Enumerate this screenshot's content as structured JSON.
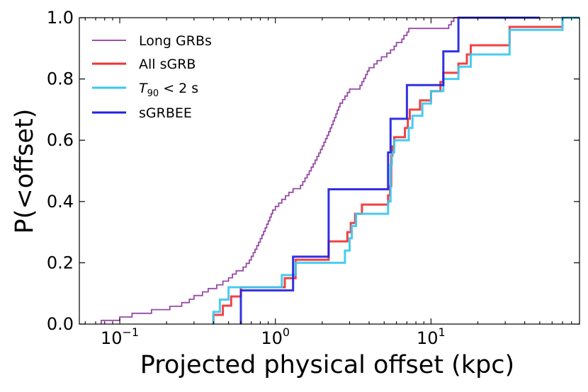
{
  "chart_data": {
    "type": "line",
    "subtype": "empirical-cdf-step",
    "title": "",
    "xlabel": "Projected physical offset (kpc)",
    "ylabel": "P(<offset)",
    "xscale": "log",
    "xlim": [
      0.055,
      90
    ],
    "ylim": [
      0,
      1
    ],
    "x_tick_labels": [
      {
        "value": 0.1,
        "base": "10",
        "exp": "−1"
      },
      {
        "value": 1,
        "base": "10",
        "exp": "0"
      },
      {
        "value": 10,
        "base": "10",
        "exp": "1"
      }
    ],
    "y_ticks": [
      0.0,
      0.2,
      0.4,
      0.6,
      0.8,
      1.0
    ],
    "y_tick_labels": [
      "0.0",
      "0.2",
      "0.4",
      "0.6",
      "0.8",
      "1.0"
    ],
    "legend_position": "top-left",
    "series": [
      {
        "name": "Long GRBs",
        "color": "#8e3a9e",
        "points": [
          [
            0.076,
            0.0
          ],
          [
            0.076,
            0.012
          ],
          [
            0.1,
            0.012
          ],
          [
            0.1,
            0.023
          ],
          [
            0.12,
            0.023
          ],
          [
            0.12,
            0.035
          ],
          [
            0.16,
            0.035
          ],
          [
            0.16,
            0.047
          ],
          [
            0.21,
            0.047
          ],
          [
            0.21,
            0.058
          ],
          [
            0.25,
            0.058
          ],
          [
            0.25,
            0.07
          ],
          [
            0.28,
            0.07
          ],
          [
            0.28,
            0.081
          ],
          [
            0.3,
            0.081
          ],
          [
            0.3,
            0.093
          ],
          [
            0.34,
            0.093
          ],
          [
            0.34,
            0.105
          ],
          [
            0.37,
            0.105
          ],
          [
            0.37,
            0.116
          ],
          [
            0.42,
            0.116
          ],
          [
            0.42,
            0.128
          ],
          [
            0.46,
            0.128
          ],
          [
            0.46,
            0.14
          ],
          [
            0.5,
            0.14
          ],
          [
            0.5,
            0.151
          ],
          [
            0.53,
            0.151
          ],
          [
            0.53,
            0.163
          ],
          [
            0.56,
            0.163
          ],
          [
            0.56,
            0.174
          ],
          [
            0.62,
            0.174
          ],
          [
            0.62,
            0.186
          ],
          [
            0.65,
            0.186
          ],
          [
            0.65,
            0.198
          ],
          [
            0.68,
            0.198
          ],
          [
            0.68,
            0.209
          ],
          [
            0.7,
            0.209
          ],
          [
            0.7,
            0.221
          ],
          [
            0.72,
            0.221
          ],
          [
            0.72,
            0.233
          ],
          [
            0.74,
            0.233
          ],
          [
            0.74,
            0.244
          ],
          [
            0.76,
            0.244
          ],
          [
            0.76,
            0.256
          ],
          [
            0.78,
            0.256
          ],
          [
            0.78,
            0.267
          ],
          [
            0.8,
            0.267
          ],
          [
            0.8,
            0.279
          ],
          [
            0.82,
            0.279
          ],
          [
            0.82,
            0.291
          ],
          [
            0.84,
            0.291
          ],
          [
            0.84,
            0.302
          ],
          [
            0.86,
            0.302
          ],
          [
            0.86,
            0.314
          ],
          [
            0.88,
            0.314
          ],
          [
            0.88,
            0.326
          ],
          [
            0.9,
            0.326
          ],
          [
            0.9,
            0.337
          ],
          [
            0.92,
            0.337
          ],
          [
            0.92,
            0.349
          ],
          [
            0.94,
            0.349
          ],
          [
            0.94,
            0.36
          ],
          [
            0.96,
            0.36
          ],
          [
            0.96,
            0.372
          ],
          [
            1.0,
            0.372
          ],
          [
            1.0,
            0.384
          ],
          [
            1.05,
            0.384
          ],
          [
            1.05,
            0.395
          ],
          [
            1.1,
            0.395
          ],
          [
            1.1,
            0.407
          ],
          [
            1.16,
            0.407
          ],
          [
            1.16,
            0.419
          ],
          [
            1.22,
            0.419
          ],
          [
            1.22,
            0.43
          ],
          [
            1.3,
            0.43
          ],
          [
            1.3,
            0.442
          ],
          [
            1.45,
            0.442
          ],
          [
            1.45,
            0.453
          ],
          [
            1.5,
            0.453
          ],
          [
            1.5,
            0.465
          ],
          [
            1.55,
            0.465
          ],
          [
            1.55,
            0.477
          ],
          [
            1.6,
            0.477
          ],
          [
            1.6,
            0.488
          ],
          [
            1.65,
            0.488
          ],
          [
            1.65,
            0.5
          ],
          [
            1.7,
            0.5
          ],
          [
            1.7,
            0.512
          ],
          [
            1.75,
            0.512
          ],
          [
            1.75,
            0.523
          ],
          [
            1.8,
            0.523
          ],
          [
            1.8,
            0.535
          ],
          [
            1.85,
            0.535
          ],
          [
            1.85,
            0.547
          ],
          [
            1.9,
            0.547
          ],
          [
            1.9,
            0.558
          ],
          [
            1.95,
            0.558
          ],
          [
            1.95,
            0.57
          ],
          [
            2.0,
            0.57
          ],
          [
            2.0,
            0.581
          ],
          [
            2.05,
            0.581
          ],
          [
            2.05,
            0.593
          ],
          [
            2.1,
            0.593
          ],
          [
            2.1,
            0.605
          ],
          [
            2.15,
            0.605
          ],
          [
            2.15,
            0.616
          ],
          [
            2.2,
            0.616
          ],
          [
            2.2,
            0.628
          ],
          [
            2.25,
            0.628
          ],
          [
            2.25,
            0.64
          ],
          [
            2.3,
            0.64
          ],
          [
            2.3,
            0.651
          ],
          [
            2.35,
            0.651
          ],
          [
            2.35,
            0.663
          ],
          [
            2.4,
            0.663
          ],
          [
            2.4,
            0.674
          ],
          [
            2.45,
            0.674
          ],
          [
            2.45,
            0.686
          ],
          [
            2.5,
            0.686
          ],
          [
            2.5,
            0.698
          ],
          [
            2.55,
            0.698
          ],
          [
            2.55,
            0.709
          ],
          [
            2.6,
            0.709
          ],
          [
            2.6,
            0.721
          ],
          [
            2.7,
            0.721
          ],
          [
            2.7,
            0.733
          ],
          [
            2.8,
            0.733
          ],
          [
            2.8,
            0.744
          ],
          [
            2.9,
            0.744
          ],
          [
            2.9,
            0.756
          ],
          [
            3.0,
            0.756
          ],
          [
            3.0,
            0.767
          ],
          [
            3.5,
            0.767
          ],
          [
            3.5,
            0.779
          ],
          [
            3.6,
            0.779
          ],
          [
            3.6,
            0.791
          ],
          [
            3.7,
            0.791
          ],
          [
            3.7,
            0.802
          ],
          [
            3.8,
            0.802
          ],
          [
            3.8,
            0.814
          ],
          [
            3.9,
            0.814
          ],
          [
            3.9,
            0.826
          ],
          [
            4.0,
            0.826
          ],
          [
            4.0,
            0.837
          ],
          [
            4.3,
            0.837
          ],
          [
            4.3,
            0.849
          ],
          [
            4.5,
            0.849
          ],
          [
            4.5,
            0.86
          ],
          [
            4.8,
            0.86
          ],
          [
            4.8,
            0.872
          ],
          [
            5.2,
            0.872
          ],
          [
            5.2,
            0.884
          ],
          [
            5.5,
            0.884
          ],
          [
            5.5,
            0.895
          ],
          [
            5.8,
            0.895
          ],
          [
            5.8,
            0.907
          ],
          [
            6.0,
            0.907
          ],
          [
            6.0,
            0.919
          ],
          [
            6.5,
            0.919
          ],
          [
            6.5,
            0.93
          ],
          [
            6.7,
            0.93
          ],
          [
            6.7,
            0.942
          ],
          [
            7.0,
            0.942
          ],
          [
            7.0,
            0.953
          ],
          [
            7.2,
            0.953
          ],
          [
            7.2,
            0.965
          ],
          [
            13.0,
            0.965
          ],
          [
            13.0,
            0.977
          ],
          [
            13.5,
            0.977
          ],
          [
            13.5,
            0.988
          ],
          [
            14.0,
            0.988
          ],
          [
            14.0,
            1.0
          ],
          [
            50.0,
            1.0
          ]
        ]
      },
      {
        "name": "All sGRB",
        "color": "#f03232",
        "points": [
          [
            0.4,
            0.0
          ],
          [
            0.4,
            0.03
          ],
          [
            0.46,
            0.03
          ],
          [
            0.46,
            0.06
          ],
          [
            0.52,
            0.06
          ],
          [
            0.52,
            0.09
          ],
          [
            0.6,
            0.09
          ],
          [
            0.6,
            0.12
          ],
          [
            1.15,
            0.12
          ],
          [
            1.15,
            0.15
          ],
          [
            1.35,
            0.15
          ],
          [
            1.35,
            0.21
          ],
          [
            2.2,
            0.21
          ],
          [
            2.2,
            0.27
          ],
          [
            2.9,
            0.27
          ],
          [
            2.9,
            0.3
          ],
          [
            3.05,
            0.3
          ],
          [
            3.05,
            0.33
          ],
          [
            3.25,
            0.33
          ],
          [
            3.25,
            0.36
          ],
          [
            3.6,
            0.36
          ],
          [
            3.6,
            0.39
          ],
          [
            5.3,
            0.39
          ],
          [
            5.3,
            0.42
          ],
          [
            5.45,
            0.42
          ],
          [
            5.45,
            0.45
          ],
          [
            5.55,
            0.45
          ],
          [
            5.55,
            0.55
          ],
          [
            5.65,
            0.55
          ],
          [
            5.65,
            0.58
          ],
          [
            5.8,
            0.58
          ],
          [
            5.8,
            0.61
          ],
          [
            6.8,
            0.61
          ],
          [
            6.8,
            0.64
          ],
          [
            7.1,
            0.64
          ],
          [
            7.1,
            0.67
          ],
          [
            7.3,
            0.67
          ],
          [
            7.3,
            0.7
          ],
          [
            8.5,
            0.7
          ],
          [
            8.5,
            0.73
          ],
          [
            10.0,
            0.73
          ],
          [
            10.0,
            0.76
          ],
          [
            11.5,
            0.76
          ],
          [
            11.5,
            0.79
          ],
          [
            12.0,
            0.79
          ],
          [
            12.0,
            0.82
          ],
          [
            15.0,
            0.82
          ],
          [
            15.0,
            0.85
          ],
          [
            17.0,
            0.85
          ],
          [
            17.0,
            0.88
          ],
          [
            18.0,
            0.88
          ],
          [
            18.0,
            0.91
          ],
          [
            32.0,
            0.91
          ],
          [
            32.0,
            0.97
          ],
          [
            70.0,
            0.97
          ],
          [
            70.0,
            1.0
          ],
          [
            90.0,
            1.0
          ]
        ]
      },
      {
        "name": "T90 < 2 s",
        "label_parts": {
          "T": "T",
          "sub": "90",
          "rel": "< 2 s"
        },
        "color": "#38c8f0",
        "points": [
          [
            0.4,
            0.0
          ],
          [
            0.4,
            0.04
          ],
          [
            0.44,
            0.04
          ],
          [
            0.44,
            0.08
          ],
          [
            0.5,
            0.08
          ],
          [
            0.5,
            0.12
          ],
          [
            1.1,
            0.12
          ],
          [
            1.1,
            0.16
          ],
          [
            1.35,
            0.16
          ],
          [
            1.35,
            0.2
          ],
          [
            2.8,
            0.2
          ],
          [
            2.8,
            0.24
          ],
          [
            3.0,
            0.24
          ],
          [
            3.0,
            0.28
          ],
          [
            3.1,
            0.28
          ],
          [
            3.1,
            0.32
          ],
          [
            3.3,
            0.32
          ],
          [
            3.3,
            0.36
          ],
          [
            5.3,
            0.36
          ],
          [
            5.3,
            0.4
          ],
          [
            5.5,
            0.4
          ],
          [
            5.5,
            0.52
          ],
          [
            5.6,
            0.52
          ],
          [
            5.6,
            0.56
          ],
          [
            5.8,
            0.56
          ],
          [
            5.8,
            0.6
          ],
          [
            7.2,
            0.6
          ],
          [
            7.2,
            0.64
          ],
          [
            7.6,
            0.64
          ],
          [
            7.6,
            0.68
          ],
          [
            8.8,
            0.68
          ],
          [
            8.8,
            0.72
          ],
          [
            10.0,
            0.72
          ],
          [
            10.0,
            0.76
          ],
          [
            12.0,
            0.76
          ],
          [
            12.0,
            0.8
          ],
          [
            15.0,
            0.8
          ],
          [
            15.0,
            0.84
          ],
          [
            18.0,
            0.84
          ],
          [
            18.0,
            0.88
          ],
          [
            32.0,
            0.88
          ],
          [
            32.0,
            0.96
          ],
          [
            70.0,
            0.96
          ],
          [
            70.0,
            1.0
          ],
          [
            90.0,
            1.0
          ]
        ]
      },
      {
        "name": "sGRBEE",
        "color": "#2020e0",
        "points": [
          [
            0.6,
            0.0
          ],
          [
            0.6,
            0.11
          ],
          [
            1.3,
            0.11
          ],
          [
            1.3,
            0.22
          ],
          [
            2.2,
            0.22
          ],
          [
            2.2,
            0.44
          ],
          [
            5.3,
            0.44
          ],
          [
            5.3,
            0.56
          ],
          [
            5.5,
            0.56
          ],
          [
            5.5,
            0.67
          ],
          [
            7.0,
            0.67
          ],
          [
            7.0,
            0.78
          ],
          [
            12.0,
            0.78
          ],
          [
            12.0,
            0.89
          ],
          [
            15.0,
            0.89
          ],
          [
            15.0,
            1.0
          ],
          [
            50.0,
            1.0
          ]
        ]
      }
    ]
  }
}
